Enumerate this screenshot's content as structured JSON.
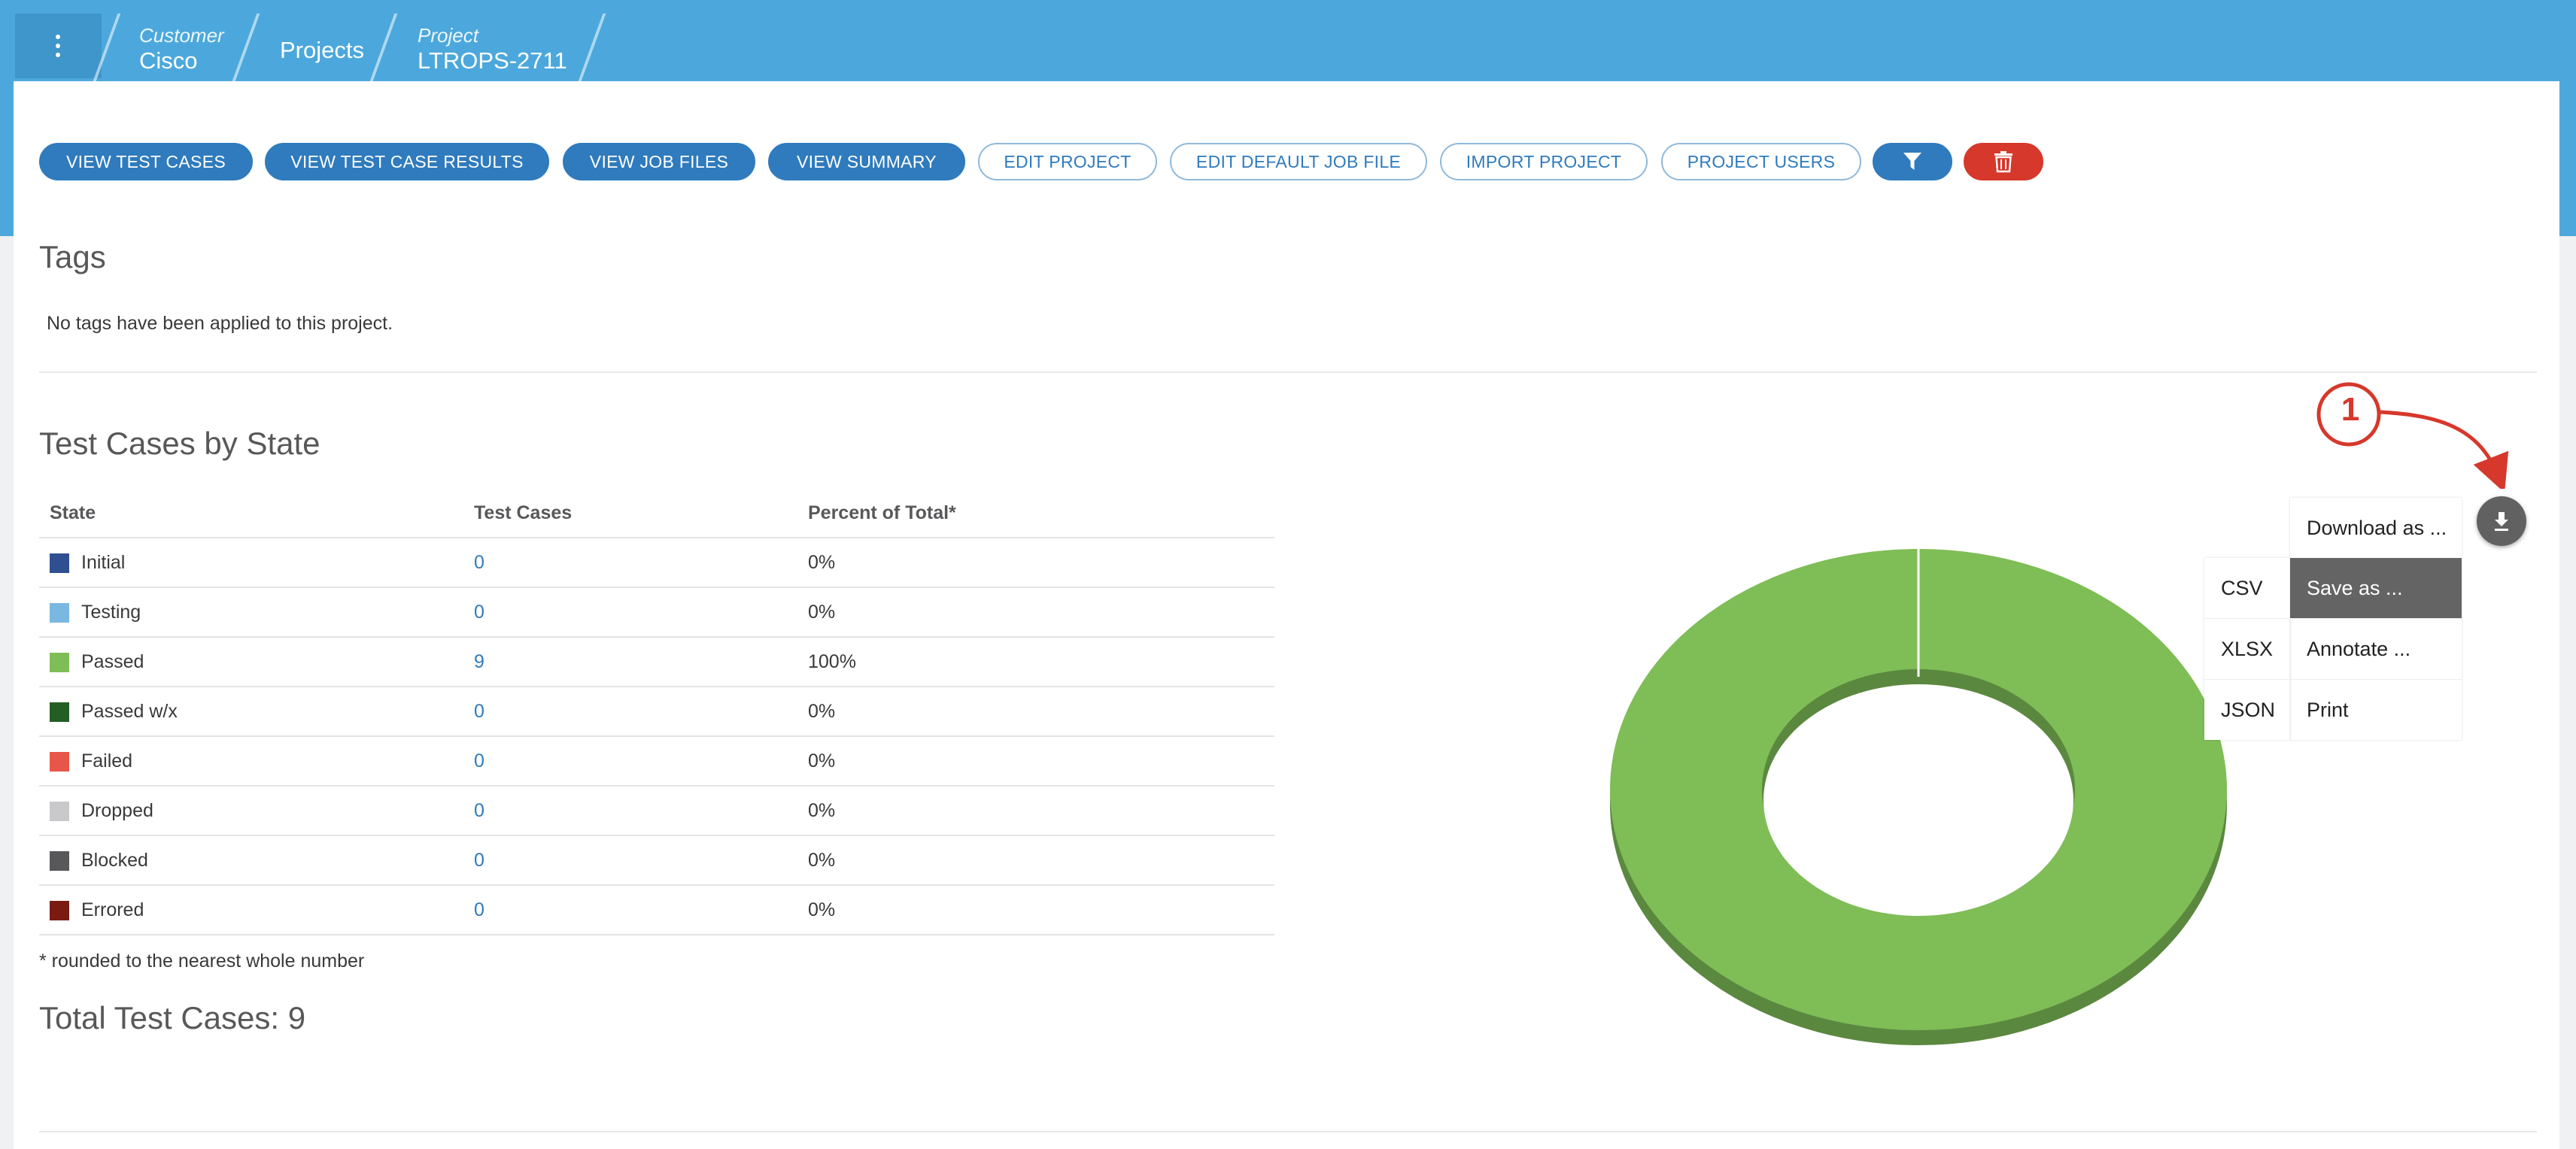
{
  "breadcrumb": {
    "customer_label": "Customer",
    "customer_value": "Cisco",
    "projects": "Projects",
    "project_label": "Project",
    "project_value": "LTROPS-2711"
  },
  "toolbar": {
    "view_test_cases": "VIEW TEST CASES",
    "view_test_case_results": "VIEW TEST CASE RESULTS",
    "view_job_files": "VIEW JOB FILES",
    "view_summary": "VIEW SUMMARY",
    "edit_project": "EDIT PROJECT",
    "edit_default_job_file": "EDIT DEFAULT JOB FILE",
    "import_project": "IMPORT PROJECT",
    "project_users": "PROJECT USERS",
    "filter_icon": "filter-icon",
    "delete_icon": "trash-icon"
  },
  "tags": {
    "heading": "Tags",
    "empty_text": "No tags have been applied to this project."
  },
  "state_section": {
    "heading": "Test Cases by State",
    "columns": [
      "State",
      "Test Cases",
      "Percent of Total*"
    ],
    "rows": [
      {
        "state": "Initial",
        "count": "0",
        "percent": "0%",
        "color": "#2f4f92"
      },
      {
        "state": "Testing",
        "count": "0",
        "percent": "0%",
        "color": "#7ab8e2"
      },
      {
        "state": "Passed",
        "count": "9",
        "percent": "100%",
        "color": "#7fbd57"
      },
      {
        "state": "Passed w/x",
        "count": "0",
        "percent": "0%",
        "color": "#235f24"
      },
      {
        "state": "Failed",
        "count": "0",
        "percent": "0%",
        "color": "#e8564a"
      },
      {
        "state": "Dropped",
        "count": "0",
        "percent": "0%",
        "color": "#c9c9cc"
      },
      {
        "state": "Blocked",
        "count": "0",
        "percent": "0%",
        "color": "#58585b"
      },
      {
        "state": "Errored",
        "count": "0",
        "percent": "0%",
        "color": "#7a1b12"
      }
    ],
    "footnote": "* rounded to the nearest whole number",
    "total": "Total Test Cases: 9"
  },
  "chart_data": {
    "type": "pie",
    "categories": [
      "Passed"
    ],
    "values": [
      9
    ],
    "colors": [
      "#7fbd57"
    ]
  },
  "export_menu": {
    "download_icon": "download-icon",
    "items": [
      "Download as ...",
      "Save as ...",
      "Annotate ...",
      "Print"
    ],
    "submenu": [
      "CSV",
      "XLSX",
      "JSON"
    ]
  },
  "annotation": {
    "callout_number": "1"
  }
}
